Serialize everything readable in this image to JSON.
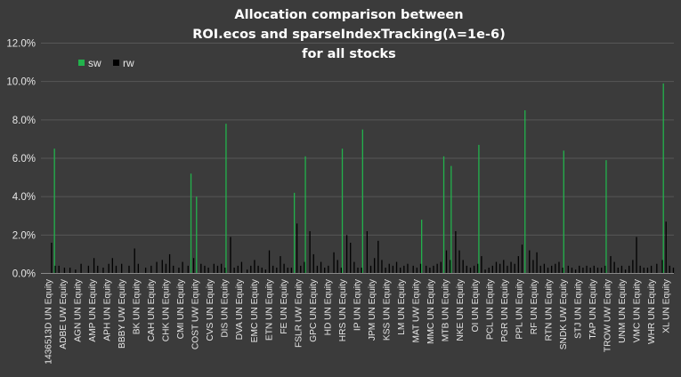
{
  "chart_data": {
    "type": "bar",
    "title_lines": [
      "Allocation comparison between",
      "ROI.ecos and sparseIndexTracking(λ=1e-6)",
      "for all stocks"
    ],
    "xlabel": "",
    "ylabel": "",
    "ylim": [
      0,
      0.12
    ],
    "y_ticks": [
      "0.0%",
      "2.0%",
      "4.0%",
      "6.0%",
      "8.0%",
      "10.0%",
      "12.0%"
    ],
    "grid": true,
    "legend_position": "top-left",
    "colors": {
      "sw": "#22b24c",
      "rw": "#000000",
      "background": "#3b3b3b",
      "grid": "#575757"
    },
    "x_tick_labels": [
      "1436513D UN Equity",
      "ADBE UW Equity",
      "AGN UN Equity",
      "AMP UN Equity",
      "APH UN Equity",
      "BBBY UW Equity",
      "BK UN Equity",
      "CAH UN Equity",
      "CHK UN Equity",
      "CMI UN Equity",
      "COST UW Equity",
      "CVS UN Equity",
      "DIS UN Equity",
      "DVA UN Equity",
      "EMC UN Equity",
      "ETN UN Equity",
      "FE UN Equity",
      "FSLR UW Equity",
      "GPC UN Equity",
      "HD UN Equity",
      "HRS UN Equity",
      "IP UN Equity",
      "JPM UN Equity",
      "KSS UN Equity",
      "LM UN Equity",
      "MAT UW Equity",
      "MMC UN Equity",
      "MTB UN Equity",
      "NKE UN Equity",
      "OI UN Equity",
      "PCL UN Equity",
      "PGR UN Equity",
      "PPL UN Equity",
      "RF UN Equity",
      "RTN UN Equity",
      "SNDK UW Equity",
      "STJ UN Equity",
      "TAP UN Equity",
      "TROW UW Equity",
      "UNM UN Equity",
      "VMC UN Equity",
      "WHR UN Equity",
      "XL UN Equity"
    ],
    "n_categories": 343,
    "series": [
      {
        "name": "sw",
        "sparse_values": [
          [
            7,
            0.065
          ],
          [
            81,
            0.052
          ],
          [
            84,
            0.04
          ],
          [
            100,
            0.078
          ],
          [
            137,
            0.042
          ],
          [
            143,
            0.061
          ],
          [
            163,
            0.065
          ],
          [
            174,
            0.075
          ],
          [
            206,
            0.028
          ],
          [
            218,
            0.061
          ],
          [
            222,
            0.056
          ],
          [
            237,
            0.067
          ],
          [
            262,
            0.085
          ],
          [
            283,
            0.064
          ],
          [
            306,
            0.059
          ],
          [
            337,
            0.099
          ]
        ]
      },
      {
        "name": "rw",
        "sparse_values": [
          [
            5,
            0.016
          ],
          [
            7,
            0.004
          ],
          [
            9,
            0.004
          ],
          [
            12,
            0.003
          ],
          [
            15,
            0.003
          ],
          [
            18,
            0.002
          ],
          [
            21,
            0.005
          ],
          [
            25,
            0.004
          ],
          [
            28,
            0.008
          ],
          [
            30,
            0.004
          ],
          [
            33,
            0.003
          ],
          [
            36,
            0.005
          ],
          [
            38,
            0.008
          ],
          [
            40,
            0.004
          ],
          [
            43,
            0.005
          ],
          [
            47,
            0.004
          ],
          [
            50,
            0.013
          ],
          [
            52,
            0.005
          ],
          [
            56,
            0.003
          ],
          [
            59,
            0.004
          ],
          [
            62,
            0.006
          ],
          [
            65,
            0.007
          ],
          [
            67,
            0.005
          ],
          [
            69,
            0.01
          ],
          [
            71,
            0.004
          ],
          [
            74,
            0.003
          ],
          [
            76,
            0.006
          ],
          [
            79,
            0.004
          ],
          [
            82,
            0.008
          ],
          [
            86,
            0.005
          ],
          [
            88,
            0.004
          ],
          [
            90,
            0.003
          ],
          [
            93,
            0.005
          ],
          [
            95,
            0.004
          ],
          [
            97,
            0.005
          ],
          [
            99,
            0.003
          ],
          [
            102,
            0.019
          ],
          [
            104,
            0.003
          ],
          [
            106,
            0.004
          ],
          [
            108,
            0.006
          ],
          [
            111,
            0.002
          ],
          [
            113,
            0.004
          ],
          [
            115,
            0.007
          ],
          [
            117,
            0.004
          ],
          [
            119,
            0.003
          ],
          [
            121,
            0.002
          ],
          [
            123,
            0.012
          ],
          [
            125,
            0.004
          ],
          [
            127,
            0.003
          ],
          [
            129,
            0.009
          ],
          [
            131,
            0.005
          ],
          [
            133,
            0.003
          ],
          [
            135,
            0.003
          ],
          [
            138,
            0.026
          ],
          [
            140,
            0.004
          ],
          [
            142,
            0.006
          ],
          [
            145,
            0.022
          ],
          [
            147,
            0.01
          ],
          [
            149,
            0.004
          ],
          [
            151,
            0.006
          ],
          [
            153,
            0.003
          ],
          [
            155,
            0.004
          ],
          [
            158,
            0.011
          ],
          [
            160,
            0.007
          ],
          [
            162,
            0.003
          ],
          [
            165,
            0.02
          ],
          [
            167,
            0.016
          ],
          [
            169,
            0.006
          ],
          [
            171,
            0.003
          ],
          [
            173,
            0.003
          ],
          [
            176,
            0.022
          ],
          [
            178,
            0.004
          ],
          [
            180,
            0.008
          ],
          [
            182,
            0.017
          ],
          [
            184,
            0.007
          ],
          [
            186,
            0.003
          ],
          [
            188,
            0.005
          ],
          [
            190,
            0.004
          ],
          [
            192,
            0.006
          ],
          [
            194,
            0.003
          ],
          [
            196,
            0.004
          ],
          [
            198,
            0.005
          ],
          [
            201,
            0.004
          ],
          [
            203,
            0.003
          ],
          [
            205,
            0.005
          ],
          [
            208,
            0.004
          ],
          [
            210,
            0.003
          ],
          [
            212,
            0.004
          ],
          [
            214,
            0.005
          ],
          [
            216,
            0.006
          ],
          [
            219,
            0.012
          ],
          [
            221,
            0.007
          ],
          [
            224,
            0.022
          ],
          [
            226,
            0.012
          ],
          [
            228,
            0.007
          ],
          [
            230,
            0.004
          ],
          [
            232,
            0.003
          ],
          [
            234,
            0.004
          ],
          [
            236,
            0.005
          ],
          [
            238,
            0.009
          ],
          [
            240,
            0.002
          ],
          [
            242,
            0.003
          ],
          [
            244,
            0.004
          ],
          [
            246,
            0.006
          ],
          [
            248,
            0.005
          ],
          [
            250,
            0.007
          ],
          [
            252,
            0.004
          ],
          [
            254,
            0.006
          ],
          [
            256,
            0.005
          ],
          [
            258,
            0.009
          ],
          [
            260,
            0.015
          ],
          [
            264,
            0.012
          ],
          [
            266,
            0.007
          ],
          [
            268,
            0.011
          ],
          [
            270,
            0.004
          ],
          [
            272,
            0.005
          ],
          [
            274,
            0.003
          ],
          [
            276,
            0.004
          ],
          [
            278,
            0.005
          ],
          [
            280,
            0.006
          ],
          [
            282,
            0.003
          ],
          [
            285,
            0.004
          ],
          [
            287,
            0.003
          ],
          [
            289,
            0.002
          ],
          [
            291,
            0.004
          ],
          [
            293,
            0.003
          ],
          [
            295,
            0.004
          ],
          [
            297,
            0.003
          ],
          [
            299,
            0.004
          ],
          [
            301,
            0.003
          ],
          [
            303,
            0.003
          ],
          [
            305,
            0.004
          ],
          [
            308,
            0.009
          ],
          [
            310,
            0.006
          ],
          [
            312,
            0.003
          ],
          [
            314,
            0.004
          ],
          [
            316,
            0.002
          ],
          [
            318,
            0.004
          ],
          [
            320,
            0.007
          ],
          [
            322,
            0.019
          ],
          [
            324,
            0.004
          ],
          [
            326,
            0.003
          ],
          [
            328,
            0.003
          ],
          [
            330,
            0.004
          ],
          [
            333,
            0.005
          ],
          [
            336,
            0.007
          ],
          [
            338,
            0.027
          ],
          [
            340,
            0.004
          ],
          [
            342,
            0.003
          ]
        ]
      }
    ]
  }
}
